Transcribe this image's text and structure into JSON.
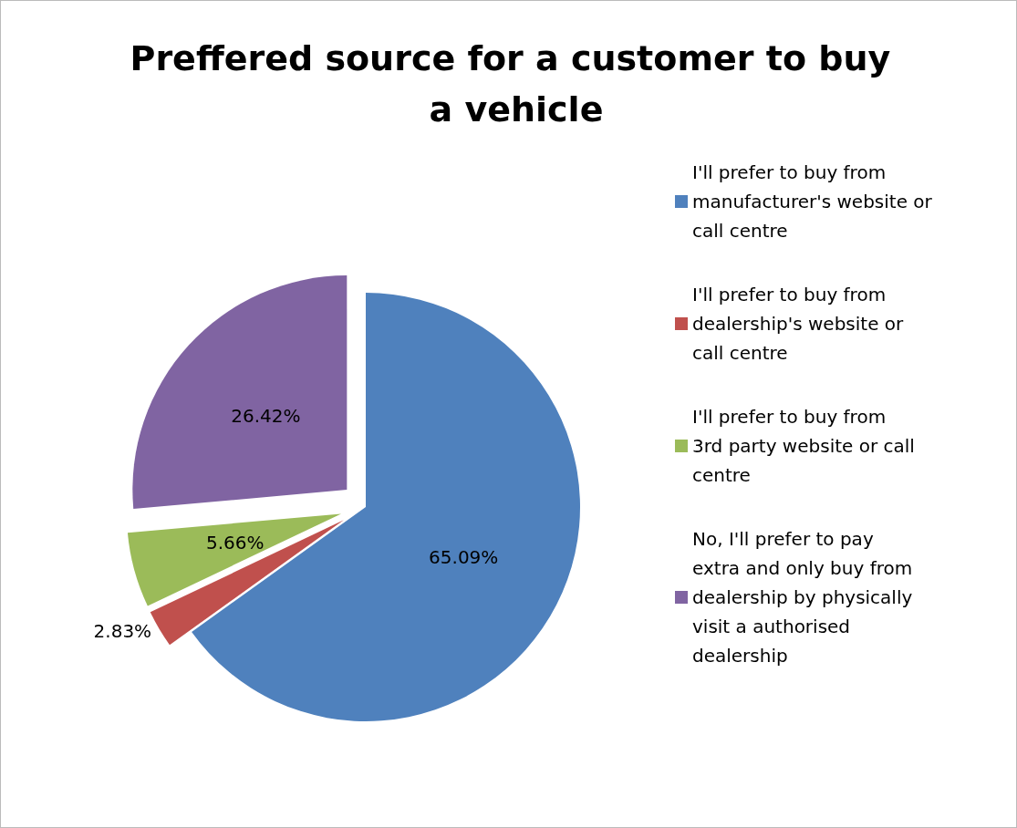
{
  "chart_data": {
    "type": "pie",
    "title": "Preffered source for a customer to buy a vehicle",
    "categories": [
      "I'll prefer to buy from manufacturer's website or call centre",
      "I'll prefer to buy from dealership's website or call centre",
      "I'll prefer to buy from 3rd party website or call centre",
      "No, I'll prefer to pay extra and only buy from dealership by physically visit a authorised dealership"
    ],
    "values": [
      65.09,
      2.83,
      5.66,
      26.42
    ],
    "value_labels": [
      "65.09%",
      "2.83%",
      "5.66%",
      "26.42%"
    ],
    "colors": [
      "#4f81bd",
      "#c0504d",
      "#9bbb59",
      "#8064a2"
    ],
    "legend": "right"
  }
}
